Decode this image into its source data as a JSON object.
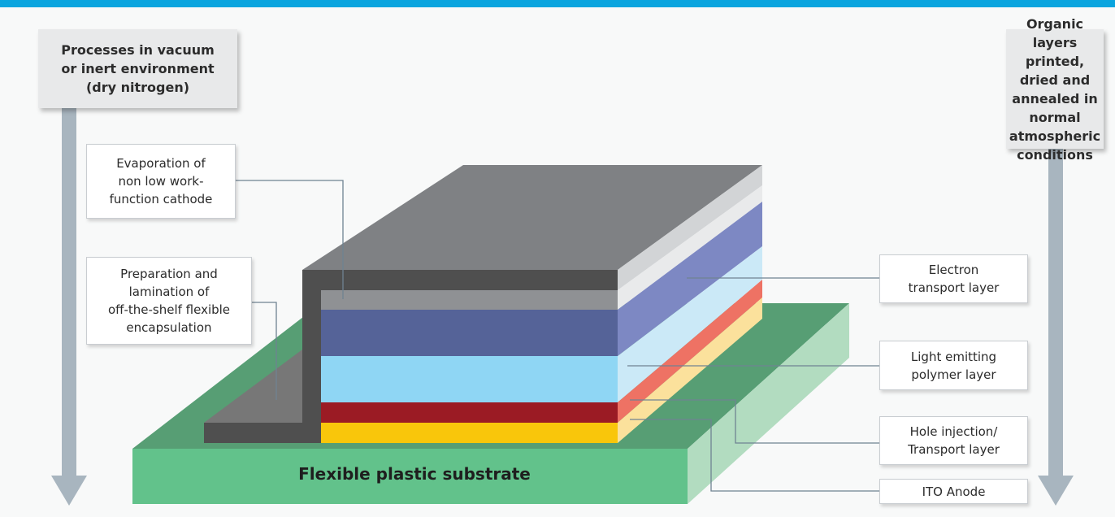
{
  "left_box": {
    "text": "Processes in vacuum\nor inert environment\n(dry nitrogen)"
  },
  "right_box": {
    "text": "Organic layers printed,\ndried and annealed in\nnormal atmospheric\nconditions"
  },
  "labels": {
    "evaporation": "Evaporation of\nnon low work-\nfunction cathode",
    "encapsulation": "Preparation and\nlamination of\noff-the-shelf flexible\nencapsulation",
    "electron_transport": "Electron\ntransport layer",
    "light_emitting": "Light emitting\npolymer layer",
    "hole_injection": "Hole injection/\nTransport layer",
    "ito_anode": "ITO Anode"
  },
  "substrate": {
    "text": "Flexible plastic substrate"
  },
  "colors": {
    "accent_bar": "#0aa5df",
    "substrate": "#62c28b",
    "encapsulation": "#4f4f4f",
    "cathode": "#8f9194",
    "electron_transport": "#556398",
    "light_emitting": "#8fd6f4",
    "hole_injection": "#9b1b24",
    "ito_anode": "#f9c60b",
    "arrows": "#a8b5bf"
  }
}
